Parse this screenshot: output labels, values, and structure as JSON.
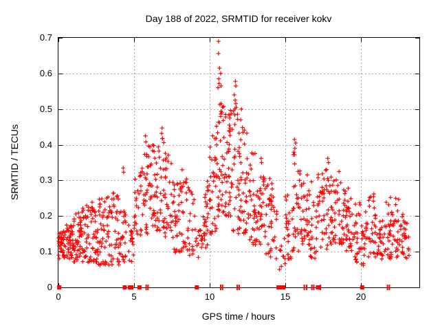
{
  "chart": {
    "title": "Day 188 of 2022, SRMTID for receiver kokv",
    "xlabel": "GPS time / hours",
    "ylabel": "SRMTID / TECUs"
  },
  "colors": {
    "marker": "#ff0000",
    "grid": "#a8a8a8",
    "frame": "#000000",
    "background": "#ffffff",
    "text": "#000000"
  },
  "chart_data": {
    "type": "scatter",
    "title": "Day 188 of 2022, SRMTID for receiver kokv",
    "xlabel": "GPS time / hours",
    "ylabel": "SRMTID / TECUs",
    "xlim": [
      0,
      23.86
    ],
    "ylim": [
      0,
      0.7
    ],
    "x_ticks": [
      "0",
      "5",
      "10",
      "15",
      "20"
    ],
    "y_ticks": [
      "0",
      "0.1",
      "0.2",
      "0.3",
      "0.4",
      "0.5",
      "0.6",
      "0.7"
    ],
    "grid": true,
    "legend": "none",
    "marker": "plus",
    "marker_color": "#ff0000",
    "seed": 188,
    "data_x_end": 23.2,
    "bins_format": "[hourStart, yMin, yMax, pointCount] per 0.5 h bin (envelope of dense + scatter cloud)",
    "density_bins": [
      [
        0.0,
        0.08,
        0.16,
        40
      ],
      [
        0.5,
        0.08,
        0.18,
        40
      ],
      [
        1.0,
        0.07,
        0.21,
        36
      ],
      [
        1.5,
        0.07,
        0.23,
        34
      ],
      [
        2.0,
        0.07,
        0.25,
        34
      ],
      [
        2.5,
        0.06,
        0.25,
        32
      ],
      [
        3.0,
        0.06,
        0.26,
        30
      ],
      [
        3.5,
        0.06,
        0.27,
        28
      ],
      [
        4.0,
        0.07,
        0.22,
        28
      ],
      [
        4.5,
        0.07,
        0.18,
        16
      ],
      [
        5.0,
        0.14,
        0.33,
        24
      ],
      [
        5.5,
        0.15,
        0.4,
        29
      ],
      [
        6.0,
        0.17,
        0.4,
        30
      ],
      [
        6.5,
        0.15,
        0.43,
        29
      ],
      [
        7.0,
        0.14,
        0.38,
        29
      ],
      [
        7.5,
        0.08,
        0.3,
        29
      ],
      [
        8.0,
        0.1,
        0.32,
        26
      ],
      [
        8.5,
        0.08,
        0.28,
        22
      ],
      [
        9.0,
        0.06,
        0.18,
        14
      ],
      [
        9.5,
        0.1,
        0.3,
        29
      ],
      [
        10.0,
        0.15,
        0.42,
        32
      ],
      [
        10.5,
        0.18,
        0.55,
        35
      ],
      [
        11.0,
        0.2,
        0.5,
        38
      ],
      [
        11.5,
        0.15,
        0.52,
        34
      ],
      [
        12.0,
        0.15,
        0.45,
        32
      ],
      [
        12.5,
        0.12,
        0.38,
        29
      ],
      [
        13.0,
        0.1,
        0.33,
        29
      ],
      [
        13.5,
        0.08,
        0.31,
        26
      ],
      [
        14.0,
        0.08,
        0.3,
        24
      ],
      [
        14.5,
        0.05,
        0.17,
        10
      ],
      [
        15.0,
        0.08,
        0.26,
        24
      ],
      [
        15.5,
        0.1,
        0.38,
        29
      ],
      [
        16.0,
        0.12,
        0.34,
        29
      ],
      [
        16.5,
        0.08,
        0.3,
        24
      ],
      [
        17.0,
        0.1,
        0.32,
        26
      ],
      [
        17.5,
        0.1,
        0.34,
        26
      ],
      [
        18.0,
        0.12,
        0.33,
        29
      ],
      [
        18.5,
        0.12,
        0.31,
        29
      ],
      [
        19.0,
        0.1,
        0.28,
        29
      ],
      [
        19.5,
        0.07,
        0.24,
        26
      ],
      [
        20.0,
        0.06,
        0.22,
        24
      ],
      [
        20.5,
        0.08,
        0.26,
        26
      ],
      [
        21.0,
        0.07,
        0.21,
        26
      ],
      [
        21.5,
        0.08,
        0.24,
        26
      ],
      [
        22.0,
        0.08,
        0.25,
        26
      ],
      [
        22.5,
        0.08,
        0.21,
        26
      ],
      [
        23.0,
        0.08,
        0.18,
        16
      ]
    ],
    "peak_points": [
      [
        10.58,
        0.69
      ],
      [
        10.58,
        0.656
      ],
      [
        10.65,
        0.615
      ],
      [
        10.72,
        0.6
      ],
      [
        10.6,
        0.585
      ],
      [
        10.62,
        0.572
      ],
      [
        10.75,
        0.565
      ],
      [
        10.55,
        0.56
      ],
      [
        11.7,
        0.578
      ],
      [
        11.73,
        0.565
      ],
      [
        11.62,
        0.54
      ],
      [
        11.68,
        0.525
      ],
      [
        11.75,
        0.505
      ],
      [
        12.1,
        0.5
      ],
      [
        12.05,
        0.47
      ],
      [
        12.2,
        0.435
      ],
      [
        10.8,
        0.49
      ],
      [
        10.9,
        0.468
      ],
      [
        11.05,
        0.478
      ],
      [
        11.3,
        0.455
      ],
      [
        10.45,
        0.452
      ],
      [
        10.2,
        0.425
      ],
      [
        6.85,
        0.447
      ],
      [
        6.82,
        0.432
      ],
      [
        6.88,
        0.418
      ],
      [
        5.75,
        0.425
      ],
      [
        5.78,
        0.408
      ],
      [
        6.3,
        0.398
      ],
      [
        4.28,
        0.335
      ],
      [
        4.31,
        0.323
      ],
      [
        8.18,
        0.33
      ],
      [
        15.6,
        0.415
      ],
      [
        15.68,
        0.405
      ],
      [
        15.63,
        0.39
      ],
      [
        13.4,
        0.362
      ],
      [
        13.43,
        0.35
      ],
      [
        17.8,
        0.362
      ],
      [
        17.85,
        0.35
      ],
      [
        18.55,
        0.325
      ],
      [
        20.85,
        0.262
      ],
      [
        21.95,
        0.252
      ],
      [
        22.3,
        0.25
      ]
    ],
    "axis_gap_squares_x": [
      0.05,
      4.38,
      4.72,
      4.82,
      5.36,
      9.15,
      14.55,
      14.65,
      14.78,
      14.88,
      17.15,
      20.08
    ],
    "axis_gap_tick_pairs_x": [
      5.8,
      5.92,
      10.72,
      10.85,
      11.82,
      11.95,
      16.25,
      16.4,
      16.75,
      16.88,
      17.32,
      21.75,
      21.88
    ]
  }
}
